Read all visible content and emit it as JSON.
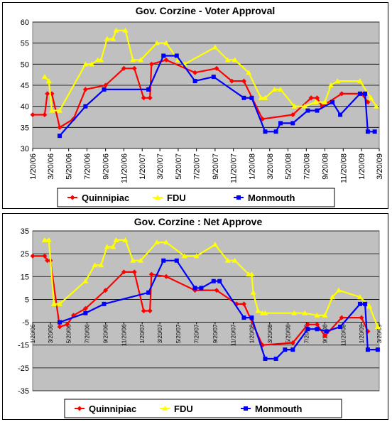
{
  "chart_data": [
    {
      "type": "line",
      "title": "Gov. Corzine - Voter Approval",
      "ylim": [
        30,
        60
      ],
      "yticks": [
        30,
        35,
        40,
        45,
        50,
        55,
        60
      ],
      "x_tick_labels": [
        "1/20/06",
        "3/20/06",
        "5/20/06",
        "7/20/06",
        "9/20/06",
        "11/20/06",
        "1/20/07",
        "3/20/07",
        "5/20/07",
        "7/20/07",
        "9/20/07",
        "11/20/07",
        "1/20/08",
        "3/20/08",
        "5/20/08",
        "7/20/08",
        "9/20/08",
        "11/20/08",
        "1/20/09",
        "3/20/09"
      ],
      "xlim": [
        "2006-01-20",
        "2009-03-20"
      ],
      "grid": "horizontal",
      "legend": "bottom",
      "series": [
        {
          "name": "Quinnipiac",
          "color": "#ff0000",
          "marker": "diamond",
          "points": [
            [
              "2006-01-20",
              38
            ],
            [
              "2006-03-01",
              38
            ],
            [
              "2006-03-10",
              43
            ],
            [
              "2006-03-25",
              43
            ],
            [
              "2006-04-20",
              35
            ],
            [
              "2006-06-05",
              37
            ],
            [
              "2006-07-15",
              44
            ],
            [
              "2006-09-20",
              45
            ],
            [
              "2006-11-20",
              49
            ],
            [
              "2006-12-25",
              49
            ],
            [
              "2007-01-25",
              42
            ],
            [
              "2007-02-15",
              42
            ],
            [
              "2007-02-20",
              50
            ],
            [
              "2007-04-10",
              51
            ],
            [
              "2007-07-15",
              48
            ],
            [
              "2007-09-25",
              49
            ],
            [
              "2007-11-15",
              46
            ],
            [
              "2007-12-25",
              46
            ],
            [
              "2008-02-25",
              37
            ],
            [
              "2008-06-05",
              38
            ],
            [
              "2008-08-05",
              42
            ],
            [
              "2008-08-25",
              42
            ],
            [
              "2008-09-10",
              40
            ],
            [
              "2008-11-15",
              43
            ],
            [
              "2009-01-20",
              43
            ],
            [
              "2009-02-10",
              41
            ]
          ]
        },
        {
          "name": "FDU",
          "color": "#ffff00",
          "marker": "triangle",
          "points": [
            [
              "2006-03-01",
              47
            ],
            [
              "2006-03-15",
              46
            ],
            [
              "2006-03-25",
              39
            ],
            [
              "2006-04-20",
              39
            ],
            [
              "2006-07-15",
              50
            ],
            [
              "2006-08-05",
              50
            ],
            [
              "2006-08-25",
              51
            ],
            [
              "2006-09-05",
              51
            ],
            [
              "2006-09-25",
              56
            ],
            [
              "2006-10-15",
              56
            ],
            [
              "2006-10-25",
              58
            ],
            [
              "2006-11-25",
              58
            ],
            [
              "2006-12-20",
              51
            ],
            [
              "2007-01-15",
              51
            ],
            [
              "2007-03-10",
              55
            ],
            [
              "2007-04-10",
              55
            ],
            [
              "2007-05-20",
              51
            ],
            [
              "2007-06-10",
              50
            ],
            [
              "2007-09-20",
              54
            ],
            [
              "2007-11-01",
              51
            ],
            [
              "2007-11-25",
              51
            ],
            [
              "2008-01-10",
              48
            ],
            [
              "2008-02-20",
              42
            ],
            [
              "2008-03-05",
              42
            ],
            [
              "2008-04-05",
              44
            ],
            [
              "2008-04-25",
              44
            ],
            [
              "2008-06-10",
              40
            ],
            [
              "2008-07-15",
              40
            ],
            [
              "2008-08-20",
              41
            ],
            [
              "2008-09-20",
              41
            ],
            [
              "2008-10-10",
              45
            ],
            [
              "2008-11-01",
              46
            ],
            [
              "2009-01-15",
              46
            ],
            [
              "2009-02-20",
              42
            ],
            [
              "2009-03-10",
              40
            ]
          ]
        },
        {
          "name": "Monmouth",
          "color": "#0000ff",
          "marker": "square",
          "points": [
            [
              "2006-04-20",
              33
            ],
            [
              "2006-07-15",
              40
            ],
            [
              "2006-09-15",
              44
            ],
            [
              "2007-02-10",
              44
            ],
            [
              "2007-04-01",
              52
            ],
            [
              "2007-05-15",
              52
            ],
            [
              "2007-07-15",
              46
            ],
            [
              "2007-09-15",
              47
            ],
            [
              "2007-12-25",
              42
            ],
            [
              "2008-01-20",
              42
            ],
            [
              "2008-03-05",
              34
            ],
            [
              "2008-04-10",
              34
            ],
            [
              "2008-04-25",
              36
            ],
            [
              "2008-06-05",
              36
            ],
            [
              "2008-07-25",
              39
            ],
            [
              "2008-08-25",
              39
            ],
            [
              "2008-10-15",
              41
            ],
            [
              "2008-11-10",
              38
            ],
            [
              "2009-01-15",
              43
            ],
            [
              "2009-02-01",
              43
            ],
            [
              "2009-02-10",
              34
            ],
            [
              "2009-03-05",
              34
            ]
          ]
        }
      ]
    },
    {
      "type": "line",
      "title": "Gov. Corzine : Net Approve",
      "ylim": [
        -35,
        35
      ],
      "yticks": [
        -35,
        -25,
        -15,
        -5,
        5,
        15,
        25,
        35
      ],
      "x_tick_labels": [
        "1/20/06",
        "3/20/06",
        "5/20/06",
        "7/20/06",
        "9/20/06",
        "11/20/06",
        "1/20/07",
        "3/20/07",
        "5/20/07",
        "7/20/07",
        "9/20/07",
        "11/20/07",
        "1/20/08",
        "3/20/08",
        "5/20/08",
        "7/20/08",
        "9/20/08",
        "11/20/08",
        "1/20/09",
        "3/20/09"
      ],
      "xlim": [
        "2006-01-20",
        "2009-03-20"
      ],
      "grid": "horizontal",
      "legend": "bottom",
      "series": [
        {
          "name": "Quinnipiac",
          "color": "#ff0000",
          "marker": "diamond",
          "points": [
            [
              "2006-01-20",
              24
            ],
            [
              "2006-03-01",
              24
            ],
            [
              "2006-03-10",
              22
            ],
            [
              "2006-03-20",
              22
            ],
            [
              "2006-04-20",
              -7
            ],
            [
              "2006-05-15",
              -6
            ],
            [
              "2006-06-05",
              -2
            ],
            [
              "2006-07-15",
              1
            ],
            [
              "2006-09-20",
              9
            ],
            [
              "2006-11-20",
              17
            ],
            [
              "2006-12-25",
              17
            ],
            [
              "2007-01-25",
              0
            ],
            [
              "2007-02-15",
              0
            ],
            [
              "2007-02-20",
              16
            ],
            [
              "2007-04-10",
              15
            ],
            [
              "2007-07-15",
              9
            ],
            [
              "2007-09-25",
              9
            ],
            [
              "2007-12-01",
              3
            ],
            [
              "2007-12-25",
              3
            ],
            [
              "2008-02-25",
              -15
            ],
            [
              "2008-06-05",
              -14
            ],
            [
              "2008-07-25",
              -6
            ],
            [
              "2008-08-25",
              -6
            ],
            [
              "2008-09-20",
              -11
            ],
            [
              "2008-11-15",
              -3
            ],
            [
              "2009-01-20",
              -3
            ],
            [
              "2009-02-10",
              -9
            ]
          ]
        },
        {
          "name": "FDU",
          "color": "#ffff00",
          "marker": "triangle",
          "points": [
            [
              "2006-03-01",
              31
            ],
            [
              "2006-03-15",
              31
            ],
            [
              "2006-04-01",
              3
            ],
            [
              "2006-04-20",
              3
            ],
            [
              "2006-07-15",
              13
            ],
            [
              "2006-08-15",
              20
            ],
            [
              "2006-09-05",
              20
            ],
            [
              "2006-09-25",
              28
            ],
            [
              "2006-10-15",
              28
            ],
            [
              "2006-10-25",
              31
            ],
            [
              "2006-11-25",
              31
            ],
            [
              "2006-12-20",
              22
            ],
            [
              "2007-01-15",
              22
            ],
            [
              "2007-03-10",
              30
            ],
            [
              "2007-04-10",
              30
            ],
            [
              "2007-06-10",
              24
            ],
            [
              "2007-07-20",
              24
            ],
            [
              "2007-09-20",
              29
            ],
            [
              "2007-11-01",
              22
            ],
            [
              "2007-11-25",
              22
            ],
            [
              "2008-01-10",
              16
            ],
            [
              "2008-01-20",
              16
            ],
            [
              "2008-01-25",
              8
            ],
            [
              "2008-02-10",
              0
            ],
            [
              "2008-02-25",
              -1
            ],
            [
              "2008-03-05",
              -1
            ],
            [
              "2008-06-10",
              -1
            ],
            [
              "2008-07-15",
              -1
            ],
            [
              "2008-08-25",
              -2
            ],
            [
              "2008-09-20",
              -2
            ],
            [
              "2008-10-15",
              6
            ],
            [
              "2008-11-05",
              9
            ],
            [
              "2009-01-15",
              6
            ],
            [
              "2009-02-15",
              2
            ],
            [
              "2009-03-15",
              -7
            ]
          ]
        },
        {
          "name": "Monmouth",
          "color": "#0000ff",
          "marker": "square",
          "points": [
            [
              "2006-04-20",
              -5
            ],
            [
              "2006-07-15",
              -1
            ],
            [
              "2006-09-15",
              3
            ],
            [
              "2007-02-10",
              8
            ],
            [
              "2007-04-01",
              22
            ],
            [
              "2007-05-15",
              22
            ],
            [
              "2007-07-15",
              10
            ],
            [
              "2007-08-05",
              10
            ],
            [
              "2007-09-15",
              13
            ],
            [
              "2007-10-05",
              13
            ],
            [
              "2007-12-25",
              -3
            ],
            [
              "2008-01-20",
              -3
            ],
            [
              "2008-03-05",
              -21
            ],
            [
              "2008-04-10",
              -21
            ],
            [
              "2008-05-10",
              -17
            ],
            [
              "2008-06-05",
              -17
            ],
            [
              "2008-07-25",
              -8
            ],
            [
              "2008-08-25",
              -8
            ],
            [
              "2008-09-25",
              -9
            ],
            [
              "2008-11-10",
              -7
            ],
            [
              "2009-01-15",
              3
            ],
            [
              "2009-02-01",
              3
            ],
            [
              "2009-02-10",
              -17
            ],
            [
              "2009-03-15",
              -17
            ]
          ]
        }
      ]
    }
  ]
}
